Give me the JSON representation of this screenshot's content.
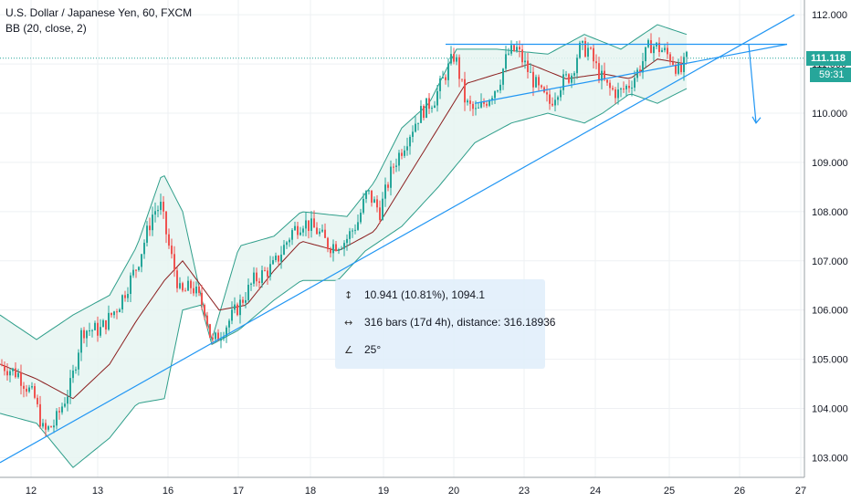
{
  "legend": {
    "symbol": "U.S. Dollar / Japanese Yen, 60, FXCM",
    "indicator": "BB (20, close, 2)"
  },
  "price_tag": "111.118",
  "countdown": "59:31",
  "measure": {
    "price_range": "10.941 (10.81%), 1094.1",
    "bars_range": "316 bars (17d 4h), distance: 316.18936",
    "angle": "25°",
    "icons": [
      "price-range-icon",
      "bars-range-icon",
      "angle-icon"
    ]
  },
  "colors": {
    "up": "#26a69a",
    "down": "#ef5350",
    "bb_band": "#2e9e8a",
    "bb_basis": "#8b1f1f",
    "bb_fill": "#e6f4f1",
    "trendline": "#2196f3",
    "grid": "#eef0f3"
  },
  "chart_data": {
    "type": "candlestick",
    "title": "U.S. Dollar / Japanese Yen, 60, FXCM",
    "y_ticks": [
      "103.000",
      "104.000",
      "105.000",
      "106.000",
      "107.000",
      "108.000",
      "109.000",
      "110.000",
      "111.000",
      "112.000"
    ],
    "ylim": [
      102.6,
      112.3
    ],
    "x_tick_labels": [
      "12",
      "13",
      "16",
      "17",
      "18",
      "19",
      "20",
      "23",
      "24",
      "25",
      "26",
      "27"
    ],
    "bollinger_bands": {
      "period": 20,
      "source": "close",
      "stddev": 2,
      "upper_anchor": [
        [
          0,
          105.9
        ],
        [
          40,
          105.4
        ],
        [
          80,
          105.9
        ],
        [
          120,
          106.3
        ],
        [
          150,
          107.3
        ],
        [
          178,
          108.8
        ],
        [
          200,
          108.0
        ],
        [
          220,
          106.3
        ],
        [
          232,
          105.4
        ],
        [
          262,
          107.3
        ],
        [
          300,
          107.5
        ],
        [
          330,
          108.0
        ],
        [
          380,
          107.9
        ],
        [
          410,
          108.6
        ],
        [
          440,
          109.7
        ],
        [
          470,
          110.2
        ],
        [
          500,
          111.3
        ],
        [
          545,
          111.3
        ],
        [
          600,
          111.2
        ],
        [
          640,
          111.6
        ],
        [
          680,
          111.3
        ],
        [
          720,
          111.8
        ],
        [
          752,
          111.6
        ]
      ],
      "basis_anchor": [
        [
          0,
          104.9
        ],
        [
          40,
          104.6
        ],
        [
          80,
          104.2
        ],
        [
          120,
          104.9
        ],
        [
          150,
          105.8
        ],
        [
          180,
          106.6
        ],
        [
          200,
          107.0
        ],
        [
          220,
          106.5
        ],
        [
          240,
          106.0
        ],
        [
          270,
          106.1
        ],
        [
          300,
          106.8
        ],
        [
          330,
          107.4
        ],
        [
          370,
          107.2
        ],
        [
          410,
          107.6
        ],
        [
          440,
          108.5
        ],
        [
          480,
          109.7
        ],
        [
          510,
          110.6
        ],
        [
          545,
          110.8
        ],
        [
          580,
          111.0
        ],
        [
          620,
          110.7
        ],
        [
          660,
          110.8
        ],
        [
          690,
          110.7
        ],
        [
          720,
          111.1
        ],
        [
          752,
          111.0
        ]
      ],
      "lower_anchor": [
        [
          0,
          103.9
        ],
        [
          40,
          103.7
        ],
        [
          80,
          102.8
        ],
        [
          120,
          103.4
        ],
        [
          150,
          104.1
        ],
        [
          180,
          104.2
        ],
        [
          200,
          106.0
        ],
        [
          220,
          106.1
        ],
        [
          232,
          105.3
        ],
        [
          262,
          105.6
        ],
        [
          300,
          106.2
        ],
        [
          330,
          106.6
        ],
        [
          370,
          106.6
        ],
        [
          400,
          107.2
        ],
        [
          440,
          107.7
        ],
        [
          480,
          108.5
        ],
        [
          520,
          109.4
        ],
        [
          560,
          109.8
        ],
        [
          600,
          110.0
        ],
        [
          640,
          109.8
        ],
        [
          660,
          110.0
        ],
        [
          690,
          110.4
        ],
        [
          720,
          110.2
        ],
        [
          752,
          110.5
        ]
      ]
    },
    "close_path_anchor": [
      [
        0,
        104.9
      ],
      [
        20,
        104.7
      ],
      [
        38,
        104.2
      ],
      [
        48,
        103.5
      ],
      [
        60,
        103.7
      ],
      [
        78,
        104.5
      ],
      [
        90,
        105.6
      ],
      [
        110,
        105.6
      ],
      [
        130,
        106.1
      ],
      [
        150,
        106.9
      ],
      [
        168,
        108.0
      ],
      [
        176,
        108.1
      ],
      [
        186,
        107.2
      ],
      [
        198,
        106.3
      ],
      [
        210,
        106.5
      ],
      [
        225,
        106.0
      ],
      [
        232,
        105.3
      ],
      [
        248,
        105.7
      ],
      [
        262,
        106.1
      ],
      [
        278,
        106.6
      ],
      [
        300,
        106.9
      ],
      [
        320,
        107.6
      ],
      [
        332,
        107.8
      ],
      [
        348,
        107.6
      ],
      [
        360,
        107.3
      ],
      [
        378,
        107.4
      ],
      [
        392,
        107.8
      ],
      [
        402,
        108.4
      ],
      [
        416,
        108.0
      ],
      [
        430,
        108.9
      ],
      [
        446,
        109.5
      ],
      [
        460,
        110.0
      ],
      [
        476,
        110.3
      ],
      [
        488,
        110.8
      ],
      [
        498,
        111.2
      ],
      [
        510,
        110.2
      ],
      [
        522,
        110.0
      ],
      [
        534,
        110.3
      ],
      [
        546,
        110.6
      ],
      [
        556,
        111.2
      ],
      [
        566,
        111.3
      ],
      [
        580,
        110.8
      ],
      [
        592,
        110.4
      ],
      [
        602,
        110.2
      ],
      [
        614,
        110.6
      ],
      [
        626,
        110.8
      ],
      [
        634,
        111.3
      ],
      [
        644,
        111.3
      ],
      [
        656,
        110.8
      ],
      [
        666,
        110.5
      ],
      [
        678,
        110.4
      ],
      [
        690,
        110.6
      ],
      [
        700,
        110.9
      ],
      [
        712,
        111.4
      ],
      [
        724,
        111.3
      ],
      [
        736,
        111.1
      ],
      [
        745,
        110.8
      ],
      [
        752,
        111.1
      ]
    ],
    "trendlines": [
      {
        "x1": 0,
        "y1": 102.9,
        "x2": 870,
        "y2": 112.0
      },
      {
        "x1": 520,
        "y1": 110.2,
        "x2": 862,
        "y2": 111.4
      },
      {
        "x1": 488,
        "y1": 111.4,
        "x2": 862,
        "y2": 111.4
      },
      {
        "x1": 820,
        "y1": 111.4,
        "x2": 828,
        "y2": 109.8
      }
    ]
  }
}
